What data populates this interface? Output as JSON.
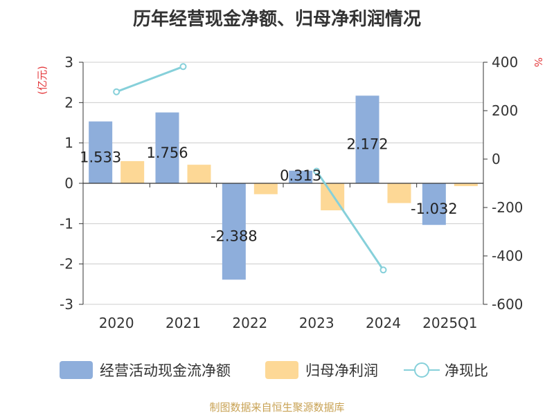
{
  "chart_data": {
    "type": "bar",
    "title": "历年经营现金净额、归母净利润情况",
    "categories": [
      "2020",
      "2021",
      "2022",
      "2023",
      "2024",
      "2025Q1"
    ],
    "left_axis": {
      "unit": "(亿元)",
      "ylim": [
        -3,
        3
      ],
      "ticks": [
        "3",
        "2",
        "1",
        "0",
        "-1",
        "-2",
        "-3"
      ]
    },
    "right_axis": {
      "unit": "%",
      "ylim": [
        -600,
        400
      ],
      "ticks": [
        "400",
        "200",
        "0",
        "-200",
        "-400",
        "-600"
      ]
    },
    "series": [
      {
        "name": "经营活动现金流净额",
        "kind": "bar",
        "axis": "left",
        "color": "#8eaedb",
        "values": [
          1.533,
          1.756,
          -2.388,
          0.313,
          2.172,
          -1.032
        ],
        "labels": [
          "1.533",
          "1.756",
          "-2.388",
          "0.313",
          "2.172",
          "-1.032"
        ]
      },
      {
        "name": "归母净利润",
        "kind": "bar",
        "axis": "left",
        "color": "#fdd896",
        "values": [
          0.55,
          0.46,
          -0.27,
          -0.67,
          -0.49,
          -0.07
        ]
      },
      {
        "name": "净现比",
        "kind": "line",
        "axis": "right",
        "color": "#86d0da",
        "values": [
          278,
          382,
          null,
          -50,
          -458,
          null
        ]
      }
    ],
    "grid": true,
    "legend": "bottom"
  },
  "source": "制图数据来自恒生聚源数据库"
}
